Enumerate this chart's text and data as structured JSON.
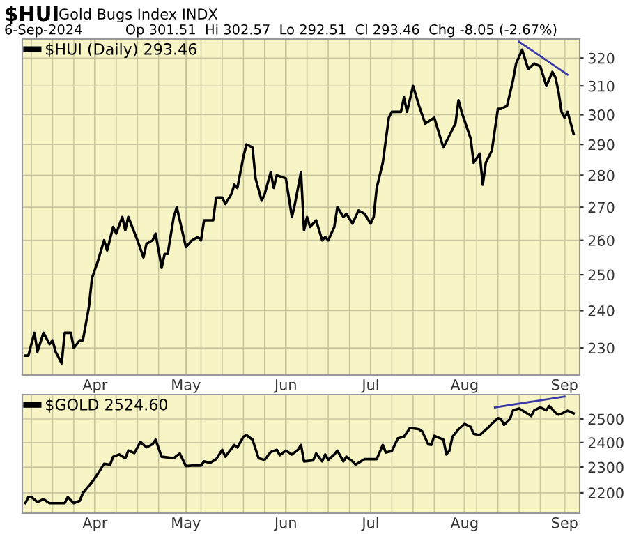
{
  "chart_data": [
    {
      "type": "line",
      "title": "$HUI",
      "subtitle": "Gold Bugs Index INDX",
      "annotations": [
        "6-Sep-2024",
        "Op 301.51  Hi 302.57  Lo 292.51  Cl 293.46  Chg -8.05 (-2.67%)"
      ],
      "log": "y",
      "grid": true,
      "legend": "top left",
      "xlim": [
        "2024-03-08",
        "2024-09-08"
      ],
      "xticks": [
        {
          "value": "2024-03-11",
          "label": null
        },
        {
          "value": "2024-03-18",
          "label": null
        },
        {
          "value": "2024-03-25",
          "label": null
        },
        {
          "value": "2024-04-01",
          "label": "Apr"
        },
        {
          "value": "2024-04-08",
          "label": null
        },
        {
          "value": "2024-04-15",
          "label": null
        },
        {
          "value": "2024-04-22",
          "label": null
        },
        {
          "value": "2024-05-01",
          "label": "May"
        },
        {
          "value": "2024-05-06",
          "label": null
        },
        {
          "value": "2024-05-13",
          "label": null
        },
        {
          "value": "2024-05-20",
          "label": null
        },
        {
          "value": "2024-05-27",
          "label": null
        },
        {
          "value": "2024-06-03",
          "label": "Jun"
        },
        {
          "value": "2024-06-10",
          "label": null
        },
        {
          "value": "2024-06-17",
          "label": null
        },
        {
          "value": "2024-06-24",
          "label": null
        },
        {
          "value": "2024-07-01",
          "label": "Jul"
        },
        {
          "value": "2024-07-08",
          "label": null
        },
        {
          "value": "2024-07-15",
          "label": null
        },
        {
          "value": "2024-07-22",
          "label": null
        },
        {
          "value": "2024-08-01",
          "label": "Aug"
        },
        {
          "value": "2024-08-05",
          "label": null
        },
        {
          "value": "2024-08-12",
          "label": null
        },
        {
          "value": "2024-08-19",
          "label": null
        },
        {
          "value": "2024-08-26",
          "label": null
        },
        {
          "value": "2024-09-03",
          "label": "Sep"
        }
      ],
      "ylim": [
        223,
        327
      ],
      "yticks": [
        230,
        240,
        250,
        260,
        270,
        280,
        290,
        300,
        310,
        320
      ],
      "series": [
        {
          "name": "$HUI (Daily) 293.46",
          "color": "#000000",
          "x": [
            "2024-03-09",
            "2024-03-10",
            "2024-03-12",
            "2024-03-13",
            "2024-03-15",
            "2024-03-17",
            "2024-03-18",
            "2024-03-19",
            "2024-03-21",
            "2024-03-22",
            "2024-03-24",
            "2024-03-25",
            "2024-03-27",
            "2024-03-28",
            "2024-03-30",
            "2024-03-31",
            "2024-04-02",
            "2024-04-03",
            "2024-04-04",
            "2024-04-05",
            "2024-04-07",
            "2024-04-08",
            "2024-04-10",
            "2024-04-11",
            "2024-04-12",
            "2024-04-15",
            "2024-04-17",
            "2024-04-18",
            "2024-04-20",
            "2024-04-21",
            "2024-04-23",
            "2024-04-24",
            "2024-04-25",
            "2024-04-27",
            "2024-04-28",
            "2024-05-01",
            "2024-05-03",
            "2024-05-05",
            "2024-05-06",
            "2024-05-07",
            "2024-05-10",
            "2024-05-11",
            "2024-05-13",
            "2024-05-14",
            "2024-05-16",
            "2024-05-17",
            "2024-05-18",
            "2024-05-20",
            "2024-05-21",
            "2024-05-23",
            "2024-05-24",
            "2024-05-26",
            "2024-05-27",
            "2024-05-29",
            "2024-05-30",
            "2024-05-31",
            "2024-06-03",
            "2024-06-05",
            "2024-06-06",
            "2024-06-08",
            "2024-06-09",
            "2024-06-10",
            "2024-06-11",
            "2024-06-13",
            "2024-06-15",
            "2024-06-16",
            "2024-06-17",
            "2024-06-19",
            "2024-06-20",
            "2024-06-22",
            "2024-06-23",
            "2024-06-25",
            "2024-06-27",
            "2024-06-29",
            "2024-07-01",
            "2024-07-02",
            "2024-07-03",
            "2024-07-05",
            "2024-07-07",
            "2024-07-08",
            "2024-07-11",
            "2024-07-12",
            "2024-07-13",
            "2024-07-15",
            "2024-07-17",
            "2024-07-19",
            "2024-07-22",
            "2024-07-25",
            "2024-07-27",
            "2024-07-29",
            "2024-07-30",
            "2024-07-31",
            "2024-08-03",
            "2024-08-04",
            "2024-08-06",
            "2024-08-07",
            "2024-08-08",
            "2024-08-10",
            "2024-08-12",
            "2024-08-13",
            "2024-08-15",
            "2024-08-17",
            "2024-08-18",
            "2024-08-20",
            "2024-08-22",
            "2024-08-24",
            "2024-08-26",
            "2024-08-28",
            "2024-08-30",
            "2024-08-31",
            "2024-09-01",
            "2024-09-02",
            "2024-09-03",
            "2024-09-04",
            "2024-09-06"
          ],
          "values": [
            228,
            228,
            234,
            229,
            234,
            231,
            232,
            229,
            226,
            234,
            234,
            230,
            232,
            232,
            241,
            249,
            254,
            257,
            260,
            257,
            264,
            262,
            267,
            263,
            267,
            260,
            255,
            259,
            260,
            262,
            252,
            256,
            256,
            267,
            270,
            258,
            260,
            261,
            260,
            266,
            266,
            273,
            273,
            271,
            274,
            277,
            276,
            286,
            290,
            289,
            279,
            272,
            274,
            281,
            276,
            280,
            279,
            267,
            271,
            281,
            263,
            267,
            264,
            266,
            260,
            261,
            260,
            264,
            270,
            267,
            268,
            265,
            269,
            268,
            265,
            267,
            276,
            284,
            299,
            301,
            301,
            306,
            301,
            310,
            303,
            297,
            299,
            289,
            293,
            297,
            305,
            301,
            292,
            284,
            287,
            277,
            284,
            288,
            302,
            302,
            303,
            312,
            318,
            323,
            316,
            318,
            317,
            310,
            315,
            313,
            308,
            301,
            299,
            301,
            293.46
          ]
        },
        {
          "type": "line",
          "color": "#3a3aa8",
          "x": [
            "2024-08-19",
            "2024-09-04"
          ],
          "values": [
            326,
            314
          ]
        }
      ]
    },
    {
      "type": "line",
      "log": "y",
      "grid": true,
      "legend": "top left",
      "xlim": [
        "2024-03-08",
        "2024-09-08"
      ],
      "xticks": [
        {
          "value": "2024-03-11",
          "label": null
        },
        {
          "value": "2024-03-18",
          "label": null
        },
        {
          "value": "2024-03-25",
          "label": null
        },
        {
          "value": "2024-04-01",
          "label": "Apr"
        },
        {
          "value": "2024-04-08",
          "label": null
        },
        {
          "value": "2024-04-15",
          "label": null
        },
        {
          "value": "2024-04-22",
          "label": null
        },
        {
          "value": "2024-05-01",
          "label": "May"
        },
        {
          "value": "2024-05-06",
          "label": null
        },
        {
          "value": "2024-05-13",
          "label": null
        },
        {
          "value": "2024-05-20",
          "label": null
        },
        {
          "value": "2024-05-27",
          "label": null
        },
        {
          "value": "2024-06-03",
          "label": "Jun"
        },
        {
          "value": "2024-06-10",
          "label": null
        },
        {
          "value": "2024-06-17",
          "label": null
        },
        {
          "value": "2024-06-24",
          "label": null
        },
        {
          "value": "2024-07-01",
          "label": "Jul"
        },
        {
          "value": "2024-07-08",
          "label": null
        },
        {
          "value": "2024-07-15",
          "label": null
        },
        {
          "value": "2024-07-22",
          "label": null
        },
        {
          "value": "2024-08-01",
          "label": "Aug"
        },
        {
          "value": "2024-08-05",
          "label": null
        },
        {
          "value": "2024-08-12",
          "label": null
        },
        {
          "value": "2024-08-19",
          "label": null
        },
        {
          "value": "2024-08-26",
          "label": null
        },
        {
          "value": "2024-09-03",
          "label": "Sep"
        }
      ],
      "ylim": [
        2124,
        2608
      ],
      "yticks": [
        2200,
        2300,
        2400,
        2500
      ],
      "series": [
        {
          "name": "$GOLD 2524.60",
          "color": "#000000",
          "x": [
            "2024-03-09",
            "2024-03-10",
            "2024-03-11",
            "2024-03-13",
            "2024-03-15",
            "2024-03-17",
            "2024-03-22",
            "2024-03-23",
            "2024-03-25",
            "2024-03-27",
            "2024-03-28",
            "2024-03-31",
            "2024-04-02",
            "2024-04-04",
            "2024-04-06",
            "2024-04-07",
            "2024-04-09",
            "2024-04-11",
            "2024-04-12",
            "2024-04-14",
            "2024-04-16",
            "2024-04-18",
            "2024-04-20",
            "2024-04-21",
            "2024-04-23",
            "2024-04-27",
            "2024-04-29",
            "2024-05-01",
            "2024-05-03",
            "2024-05-06",
            "2024-05-07",
            "2024-05-09",
            "2024-05-11",
            "2024-05-13",
            "2024-05-14",
            "2024-05-17",
            "2024-05-18",
            "2024-05-20",
            "2024-05-21",
            "2024-05-23",
            "2024-05-25",
            "2024-05-27",
            "2024-05-29",
            "2024-05-31",
            "2024-06-01",
            "2024-06-03",
            "2024-06-05",
            "2024-06-07",
            "2024-06-08",
            "2024-06-09",
            "2024-06-12",
            "2024-06-13",
            "2024-06-15",
            "2024-06-16",
            "2024-06-17",
            "2024-06-19",
            "2024-06-20",
            "2024-06-22",
            "2024-06-23",
            "2024-06-25",
            "2024-06-26",
            "2024-06-29",
            "2024-07-02",
            "2024-07-03",
            "2024-07-05",
            "2024-07-06",
            "2024-07-08",
            "2024-07-10",
            "2024-07-12",
            "2024-07-14",
            "2024-07-17",
            "2024-07-18",
            "2024-07-20",
            "2024-07-21",
            "2024-07-22",
            "2024-07-25",
            "2024-07-26",
            "2024-07-27",
            "2024-07-28",
            "2024-07-30",
            "2024-08-01",
            "2024-08-03",
            "2024-08-04",
            "2024-08-06",
            "2024-08-09",
            "2024-08-10",
            "2024-08-12",
            "2024-08-13",
            "2024-08-14",
            "2024-08-16",
            "2024-08-17",
            "2024-08-19",
            "2024-08-20",
            "2024-08-23",
            "2024-08-24",
            "2024-08-26",
            "2024-08-28",
            "2024-08-29",
            "2024-08-31",
            "2024-09-01",
            "2024-09-02",
            "2024-09-04",
            "2024-09-06"
          ],
          "values": [
            2161,
            2184,
            2184,
            2165,
            2176,
            2161,
            2161,
            2184,
            2161,
            2170,
            2199,
            2241,
            2275,
            2313,
            2310,
            2342,
            2351,
            2336,
            2367,
            2357,
            2403,
            2380,
            2393,
            2412,
            2342,
            2336,
            2355,
            2304,
            2306,
            2306,
            2323,
            2317,
            2332,
            2370,
            2342,
            2390,
            2380,
            2424,
            2431,
            2412,
            2336,
            2329,
            2361,
            2370,
            2348,
            2367,
            2351,
            2370,
            2390,
            2323,
            2327,
            2355,
            2323,
            2351,
            2329,
            2351,
            2367,
            2323,
            2342,
            2323,
            2310,
            2332,
            2332,
            2332,
            2390,
            2359,
            2365,
            2418,
            2424,
            2462,
            2456,
            2447,
            2393,
            2390,
            2428,
            2412,
            2351,
            2367,
            2424,
            2456,
            2479,
            2466,
            2437,
            2431,
            2466,
            2479,
            2504,
            2500,
            2475,
            2500,
            2538,
            2546,
            2538,
            2513,
            2538,
            2551,
            2538,
            2557,
            2527,
            2519,
            2523,
            2536,
            2524.6
          ]
        },
        {
          "type": "line",
          "color": "#3a3aa8",
          "x": [
            "2024-08-11",
            "2024-09-03"
          ],
          "values": [
            2551,
            2599
          ]
        }
      ]
    }
  ]
}
